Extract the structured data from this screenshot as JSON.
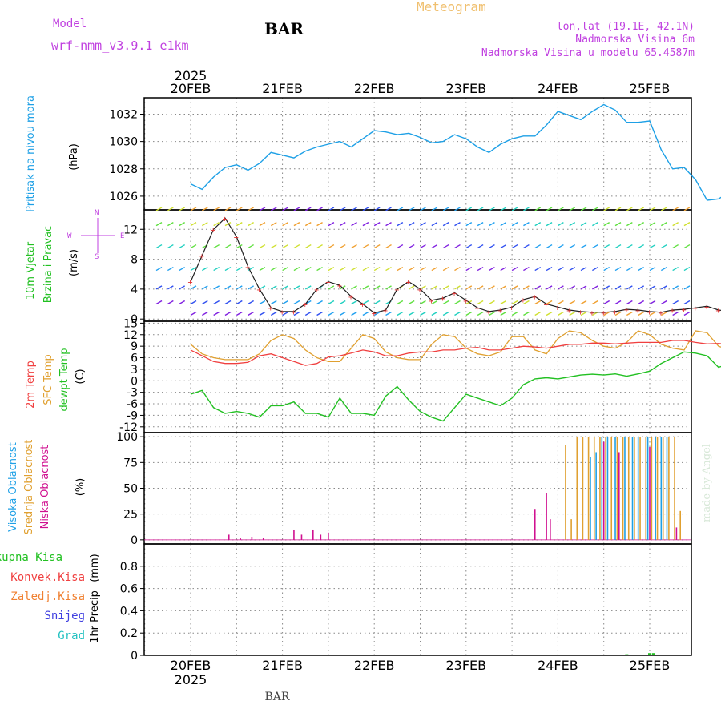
{
  "header": {
    "model_label": "Model",
    "model_name": "wrf-nmm_v3.9.1 e1km",
    "station": "BAR",
    "title": "Meteogram",
    "coords": "lon,lat (19.1E, 42.1N)",
    "altitude": "Nadmorska Visina 6m",
    "model_altitude": "Nadmorska Visina u modelu 65.4587m"
  },
  "footer": {
    "station": "BAR",
    "credit": "made by Angel"
  },
  "time_axis": {
    "year": "2025",
    "dates": [
      "20FEB",
      "21FEB",
      "22FEB",
      "23FEB",
      "24FEB",
      "25FEB"
    ]
  },
  "colors": {
    "pressure": "#1ea0e6",
    "temp2m": "#f04040",
    "sfc": "#e0a030",
    "dewpoint": "#22c022",
    "high_cloud": "#1ea0e6",
    "mid_cloud": "#e0a030",
    "low_cloud": "#d01090",
    "wind_label": "#22c022",
    "wind_label2": "#22c022",
    "wind_compass": "#c040e0"
  },
  "chart_data": [
    {
      "type": "line",
      "panel": "pressure",
      "ylabel": "Pritisak na nivou mora",
      "unit": "(hPa)",
      "ylim": [
        1025,
        1033.2
      ],
      "yticks": [
        1026,
        1028,
        1030,
        1032
      ],
      "x_hours": [
        0,
        3,
        6,
        9,
        12,
        15,
        18,
        21,
        24,
        27,
        30,
        33,
        36,
        39,
        42,
        45,
        48,
        51,
        54,
        57,
        60,
        63,
        66,
        69,
        72,
        75,
        78,
        81,
        84,
        87,
        90,
        93,
        96,
        99,
        102,
        105,
        108,
        111,
        114,
        117,
        120,
        123,
        126,
        129,
        132,
        135,
        138,
        141,
        144,
        147
      ],
      "series": [
        {
          "values": [
            1026.9,
            1026.5,
            1027.4,
            1028.1,
            1028.3,
            1027.9,
            1028.4,
            1029.2,
            1029.0,
            1028.8,
            1029.3,
            1029.6,
            1029.8,
            1030.0,
            1029.6,
            1030.2,
            1030.8,
            1030.7,
            1030.5,
            1030.6,
            1030.3,
            1029.9,
            1030.0,
            1030.5,
            1030.2,
            1029.6,
            1029.2,
            1029.8,
            1030.2,
            1030.4,
            1030.4,
            1031.2,
            1032.2,
            1031.9,
            1031.6,
            1032.2,
            1032.7,
            1032.3,
            1031.4,
            1031.4,
            1031.5,
            1029.4,
            1028.0,
            1028.1,
            1027.2,
            1025.7,
            1025.8,
            1026.3,
            1026.7,
            1026.0
          ]
        }
      ]
    },
    {
      "type": "line",
      "panel": "wind",
      "ylabel": "10m Vjetar",
      "ylabel2": "Brzina i Pravac",
      "unit": "(m/s)",
      "compass": {
        "n": "N",
        "w": "W",
        "e": "E",
        "s": "S"
      },
      "ylim": [
        -0.3,
        14.6
      ],
      "yticks": [
        0,
        4,
        8,
        12
      ],
      "x_hours": [
        0,
        3,
        6,
        9,
        12,
        15,
        18,
        21,
        24,
        27,
        30,
        33,
        36,
        39,
        42,
        45,
        48,
        51,
        54,
        57,
        60,
        63,
        66,
        69,
        72,
        75,
        78,
        81,
        84,
        87,
        90,
        93,
        96,
        99,
        102,
        105,
        108,
        111,
        114,
        117,
        120,
        123,
        126,
        129,
        132,
        135,
        138,
        141,
        144,
        147
      ],
      "series": [
        {
          "values": [
            5.0,
            8.5,
            12.0,
            13.5,
            11.0,
            7.0,
            4.0,
            1.5,
            1.0,
            1.0,
            2.0,
            4.0,
            5.0,
            4.5,
            3.0,
            2.0,
            0.8,
            1.2,
            4.0,
            5.0,
            4.0,
            2.5,
            2.8,
            3.5,
            2.5,
            1.5,
            1.0,
            1.2,
            1.6,
            2.6,
            3.0,
            2.0,
            1.6,
            1.2,
            1.0,
            0.9,
            0.9,
            1.0,
            1.3,
            1.2,
            1.0,
            0.9,
            1.2,
            1.3,
            1.5,
            1.7,
            1.2,
            1.0,
            1.5,
            1.6
          ]
        }
      ]
    },
    {
      "type": "line",
      "panel": "temperature",
      "ylabel": "2m Temp",
      "ylabel2": "SFC Temp",
      "ylabel3": "dewpt Temp",
      "unit": "(C)",
      "ylim": [
        -13.5,
        15.5
      ],
      "yticks": [
        -12,
        -9,
        -6,
        -3,
        0,
        3,
        6,
        9,
        12,
        15
      ],
      "x_hours": [
        0,
        3,
        6,
        9,
        12,
        15,
        18,
        21,
        24,
        27,
        30,
        33,
        36,
        39,
        42,
        45,
        48,
        51,
        54,
        57,
        60,
        63,
        66,
        69,
        72,
        75,
        78,
        81,
        84,
        87,
        90,
        93,
        96,
        99,
        102,
        105,
        108,
        111,
        114,
        117,
        120,
        123,
        126,
        129,
        132,
        135,
        138,
        141,
        144,
        147
      ],
      "series": [
        {
          "name": "2m Temp",
          "values": [
            8.0,
            6.5,
            5.0,
            4.5,
            4.5,
            4.8,
            6.5,
            7.0,
            6.0,
            5.0,
            4.0,
            4.5,
            6.2,
            6.5,
            7.2,
            8.0,
            7.5,
            6.5,
            6.5,
            7.2,
            7.5,
            7.5,
            8.0,
            8.0,
            8.5,
            8.7,
            8.0,
            8.0,
            8.5,
            9.0,
            8.8,
            8.5,
            9.0,
            9.5,
            9.5,
            9.8,
            9.8,
            9.6,
            9.8,
            10.0,
            10.0,
            10.0,
            10.5,
            10.5,
            10.0,
            9.6,
            9.7,
            9.5,
            10.3,
            10.5
          ]
        },
        {
          "name": "SFC Temp",
          "values": [
            9.5,
            7.0,
            6.0,
            5.5,
            5.5,
            5.5,
            7.0,
            10.5,
            12.0,
            11.0,
            8.0,
            6.0,
            5.0,
            5.0,
            8.5,
            12.0,
            11.0,
            7.5,
            6.0,
            5.5,
            5.5,
            9.5,
            12.0,
            11.5,
            8.5,
            7.0,
            6.5,
            7.5,
            11.5,
            11.5,
            8.0,
            7.0,
            11.0,
            13.0,
            12.5,
            10.5,
            9.0,
            8.5,
            10.0,
            13.0,
            12.0,
            9.5,
            8.5,
            8.0,
            13.0,
            12.5,
            9.0,
            8.0,
            12.5,
            14.0
          ]
        },
        {
          "name": "dewpt Temp",
          "values": [
            -3.5,
            -2.5,
            -7.0,
            -8.5,
            -8.0,
            -8.5,
            -9.5,
            -6.5,
            -6.5,
            -5.5,
            -8.5,
            -8.5,
            -9.5,
            -4.5,
            -8.5,
            -8.5,
            -9.0,
            -4.0,
            -1.5,
            -5.0,
            -8.0,
            -9.5,
            -10.5,
            -7.0,
            -3.5,
            -4.5,
            -5.5,
            -6.5,
            -4.5,
            -1.0,
            0.5,
            0.8,
            0.5,
            1.0,
            1.5,
            1.7,
            1.5,
            1.8,
            1.2,
            1.8,
            2.5,
            4.5,
            6.0,
            7.5,
            7.2,
            6.5,
            3.5,
            4.5,
            4.0,
            5.0
          ]
        }
      ]
    },
    {
      "type": "bar",
      "panel": "clouds",
      "ylabel": "Visoka Oblacnost",
      "ylabel2": "Srednja Oblacnost",
      "ylabel3": "Niska Oblacnost",
      "unit": "(%)",
      "ylim": [
        -4,
        104
      ],
      "yticks": [
        0,
        25,
        50,
        75,
        100
      ],
      "series": [
        {
          "name": "Niska Oblacnost",
          "x_hours": [
            10,
            13,
            16,
            19,
            27,
            29,
            32,
            34,
            36,
            90,
            93,
            94,
            108,
            112,
            120,
            127
          ],
          "values": [
            5,
            2,
            3,
            2,
            10,
            5,
            10,
            5,
            7,
            30,
            45,
            20,
            95,
            85,
            90,
            12
          ]
        },
        {
          "name": "Srednja Oblacnost",
          "x_hours": [
            98,
            99.5,
            101,
            102.5,
            104,
            105.5,
            107,
            108.5,
            110,
            111.5,
            113,
            114.5,
            116,
            117.5,
            119,
            120.5,
            122,
            123.5,
            125,
            126.5,
            128
          ],
          "values": [
            92,
            20,
            100,
            100,
            100,
            100,
            100,
            100,
            100,
            100,
            100,
            100,
            100,
            100,
            100,
            100,
            100,
            100,
            100,
            100,
            28
          ]
        },
        {
          "name": "Visoka Oblacnost",
          "x_hours": [
            104.5,
            106,
            107.5,
            109,
            111,
            113.5,
            115.5,
            117,
            119.5,
            121.5,
            123,
            124.5
          ],
          "values": [
            80,
            85,
            100,
            100,
            100,
            100,
            100,
            100,
            100,
            100,
            100,
            100
          ]
        }
      ]
    },
    {
      "type": "bar",
      "panel": "precipitation",
      "ylabel": "1hr Precip",
      "unit": "(mm)",
      "ylim": [
        0,
        1.0
      ],
      "yticks": [
        0,
        0.2,
        0.4,
        0.6,
        0.8
      ],
      "legend": [
        "Ukupna Kisa",
        "Konvek.Kisa",
        "Zaledj.Kisa",
        "Snijeg",
        "Grad"
      ],
      "series": [
        {
          "name": "Ukupna Kisa",
          "x_hours": [
            114,
            120,
            121
          ],
          "values": [
            0.01,
            0.02,
            0.02
          ]
        }
      ]
    }
  ]
}
